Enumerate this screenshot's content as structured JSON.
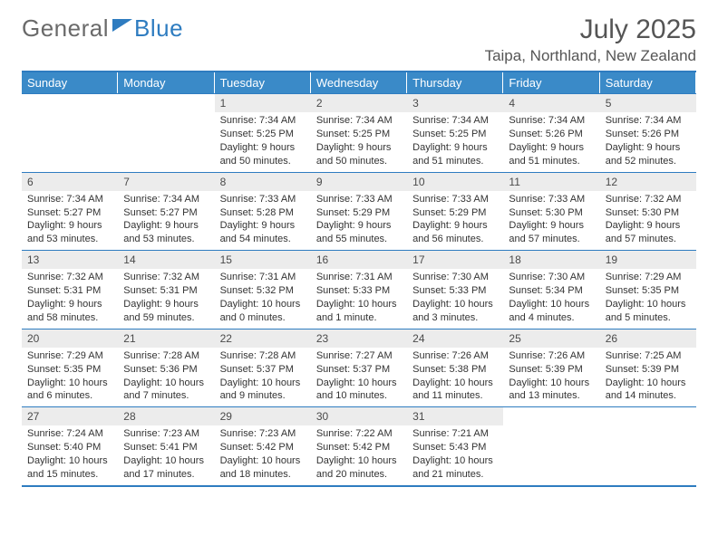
{
  "logo": {
    "general": "General",
    "blue": "Blue"
  },
  "header": {
    "title": "July 2025",
    "location": "Taipa, Northland, New Zealand"
  },
  "styling": {
    "accent": "#3a8ac8",
    "rule": "#2e7cc0",
    "daynum_bg": "#ececec",
    "text": "#333333",
    "muted": "#555555",
    "background": "#ffffff",
    "title_fontsize": 30,
    "location_fontsize": 17,
    "header_fontsize": 13,
    "cell_fontsize": 11,
    "columns": 7
  },
  "dayHeaders": [
    "Sunday",
    "Monday",
    "Tuesday",
    "Wednesday",
    "Thursday",
    "Friday",
    "Saturday"
  ],
  "weeks": [
    [
      {
        "empty": true
      },
      {
        "empty": true
      },
      {
        "num": "1",
        "sunrise": "Sunrise: 7:34 AM",
        "sunset": "Sunset: 5:25 PM",
        "day1": "Daylight: 9 hours",
        "day2": "and 50 minutes."
      },
      {
        "num": "2",
        "sunrise": "Sunrise: 7:34 AM",
        "sunset": "Sunset: 5:25 PM",
        "day1": "Daylight: 9 hours",
        "day2": "and 50 minutes."
      },
      {
        "num": "3",
        "sunrise": "Sunrise: 7:34 AM",
        "sunset": "Sunset: 5:25 PM",
        "day1": "Daylight: 9 hours",
        "day2": "and 51 minutes."
      },
      {
        "num": "4",
        "sunrise": "Sunrise: 7:34 AM",
        "sunset": "Sunset: 5:26 PM",
        "day1": "Daylight: 9 hours",
        "day2": "and 51 minutes."
      },
      {
        "num": "5",
        "sunrise": "Sunrise: 7:34 AM",
        "sunset": "Sunset: 5:26 PM",
        "day1": "Daylight: 9 hours",
        "day2": "and 52 minutes."
      }
    ],
    [
      {
        "num": "6",
        "sunrise": "Sunrise: 7:34 AM",
        "sunset": "Sunset: 5:27 PM",
        "day1": "Daylight: 9 hours",
        "day2": "and 53 minutes."
      },
      {
        "num": "7",
        "sunrise": "Sunrise: 7:34 AM",
        "sunset": "Sunset: 5:27 PM",
        "day1": "Daylight: 9 hours",
        "day2": "and 53 minutes."
      },
      {
        "num": "8",
        "sunrise": "Sunrise: 7:33 AM",
        "sunset": "Sunset: 5:28 PM",
        "day1": "Daylight: 9 hours",
        "day2": "and 54 minutes."
      },
      {
        "num": "9",
        "sunrise": "Sunrise: 7:33 AM",
        "sunset": "Sunset: 5:29 PM",
        "day1": "Daylight: 9 hours",
        "day2": "and 55 minutes."
      },
      {
        "num": "10",
        "sunrise": "Sunrise: 7:33 AM",
        "sunset": "Sunset: 5:29 PM",
        "day1": "Daylight: 9 hours",
        "day2": "and 56 minutes."
      },
      {
        "num": "11",
        "sunrise": "Sunrise: 7:33 AM",
        "sunset": "Sunset: 5:30 PM",
        "day1": "Daylight: 9 hours",
        "day2": "and 57 minutes."
      },
      {
        "num": "12",
        "sunrise": "Sunrise: 7:32 AM",
        "sunset": "Sunset: 5:30 PM",
        "day1": "Daylight: 9 hours",
        "day2": "and 57 minutes."
      }
    ],
    [
      {
        "num": "13",
        "sunrise": "Sunrise: 7:32 AM",
        "sunset": "Sunset: 5:31 PM",
        "day1": "Daylight: 9 hours",
        "day2": "and 58 minutes."
      },
      {
        "num": "14",
        "sunrise": "Sunrise: 7:32 AM",
        "sunset": "Sunset: 5:31 PM",
        "day1": "Daylight: 9 hours",
        "day2": "and 59 minutes."
      },
      {
        "num": "15",
        "sunrise": "Sunrise: 7:31 AM",
        "sunset": "Sunset: 5:32 PM",
        "day1": "Daylight: 10 hours",
        "day2": "and 0 minutes."
      },
      {
        "num": "16",
        "sunrise": "Sunrise: 7:31 AM",
        "sunset": "Sunset: 5:33 PM",
        "day1": "Daylight: 10 hours",
        "day2": "and 1 minute."
      },
      {
        "num": "17",
        "sunrise": "Sunrise: 7:30 AM",
        "sunset": "Sunset: 5:33 PM",
        "day1": "Daylight: 10 hours",
        "day2": "and 3 minutes."
      },
      {
        "num": "18",
        "sunrise": "Sunrise: 7:30 AM",
        "sunset": "Sunset: 5:34 PM",
        "day1": "Daylight: 10 hours",
        "day2": "and 4 minutes."
      },
      {
        "num": "19",
        "sunrise": "Sunrise: 7:29 AM",
        "sunset": "Sunset: 5:35 PM",
        "day1": "Daylight: 10 hours",
        "day2": "and 5 minutes."
      }
    ],
    [
      {
        "num": "20",
        "sunrise": "Sunrise: 7:29 AM",
        "sunset": "Sunset: 5:35 PM",
        "day1": "Daylight: 10 hours",
        "day2": "and 6 minutes."
      },
      {
        "num": "21",
        "sunrise": "Sunrise: 7:28 AM",
        "sunset": "Sunset: 5:36 PM",
        "day1": "Daylight: 10 hours",
        "day2": "and 7 minutes."
      },
      {
        "num": "22",
        "sunrise": "Sunrise: 7:28 AM",
        "sunset": "Sunset: 5:37 PM",
        "day1": "Daylight: 10 hours",
        "day2": "and 9 minutes."
      },
      {
        "num": "23",
        "sunrise": "Sunrise: 7:27 AM",
        "sunset": "Sunset: 5:37 PM",
        "day1": "Daylight: 10 hours",
        "day2": "and 10 minutes."
      },
      {
        "num": "24",
        "sunrise": "Sunrise: 7:26 AM",
        "sunset": "Sunset: 5:38 PM",
        "day1": "Daylight: 10 hours",
        "day2": "and 11 minutes."
      },
      {
        "num": "25",
        "sunrise": "Sunrise: 7:26 AM",
        "sunset": "Sunset: 5:39 PM",
        "day1": "Daylight: 10 hours",
        "day2": "and 13 minutes."
      },
      {
        "num": "26",
        "sunrise": "Sunrise: 7:25 AM",
        "sunset": "Sunset: 5:39 PM",
        "day1": "Daylight: 10 hours",
        "day2": "and 14 minutes."
      }
    ],
    [
      {
        "num": "27",
        "sunrise": "Sunrise: 7:24 AM",
        "sunset": "Sunset: 5:40 PM",
        "day1": "Daylight: 10 hours",
        "day2": "and 15 minutes."
      },
      {
        "num": "28",
        "sunrise": "Sunrise: 7:23 AM",
        "sunset": "Sunset: 5:41 PM",
        "day1": "Daylight: 10 hours",
        "day2": "and 17 minutes."
      },
      {
        "num": "29",
        "sunrise": "Sunrise: 7:23 AM",
        "sunset": "Sunset: 5:42 PM",
        "day1": "Daylight: 10 hours",
        "day2": "and 18 minutes."
      },
      {
        "num": "30",
        "sunrise": "Sunrise: 7:22 AM",
        "sunset": "Sunset: 5:42 PM",
        "day1": "Daylight: 10 hours",
        "day2": "and 20 minutes."
      },
      {
        "num": "31",
        "sunrise": "Sunrise: 7:21 AM",
        "sunset": "Sunset: 5:43 PM",
        "day1": "Daylight: 10 hours",
        "day2": "and 21 minutes."
      },
      {
        "empty": true
      },
      {
        "empty": true
      }
    ]
  ]
}
